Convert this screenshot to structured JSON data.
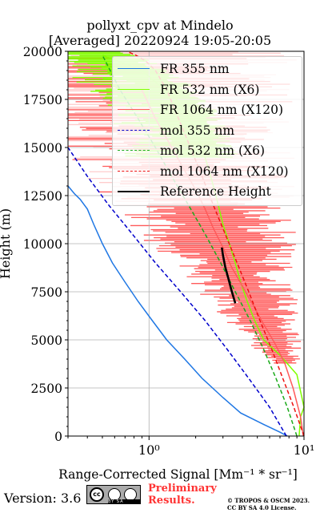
{
  "header": {
    "title_line1": "pollyxt_cpv at Mindelo",
    "title_line2": "[Averaged] 20220924 19:05-20:05"
  },
  "colors": {
    "fr355": "#1f77e4",
    "fr532": "#80ff00",
    "fr1064": "#ff5a5a",
    "mol355": "#0000cc",
    "mol532": "#1aaa1a",
    "mol1064": "#ee1111",
    "reference": "#000000",
    "grid": "#b0b0b0",
    "prelim": "#ff3333"
  },
  "chart_data": {
    "type": "line",
    "ylabel": "Height (m)",
    "xlabel": "Range-Corrected Signal [Mm⁻¹ * sr⁻¹]",
    "xscale": "log",
    "xlim": [
      0.3,
      10
    ],
    "ylim": [
      0,
      20000
    ],
    "y_ticks": [
      0,
      2500,
      5000,
      7500,
      10000,
      12500,
      15000,
      17500,
      20000
    ],
    "y_tick_labels": [
      "0",
      "2500",
      "5000",
      "7500",
      "10000",
      "12500",
      "15000",
      "17500",
      "20000"
    ],
    "x_ticks": [
      1,
      10
    ],
    "x_tick_labels": [
      "10⁰",
      "10¹"
    ],
    "grid": true,
    "legend_position": "top-right",
    "series": [
      {
        "name": "FR 355 nm",
        "style": "solid",
        "x": [
          7.8,
          7.0,
          5.5,
          3.9,
          3.0,
          2.2,
          1.7,
          1.3,
          1.05,
          0.85,
          0.7,
          0.58,
          0.5,
          0.44,
          0.4,
          0.36,
          0.33,
          0.3
        ],
        "y": [
          0,
          200,
          600,
          1200,
          2000,
          3000,
          4000,
          5000,
          6000,
          7000,
          8000,
          9000,
          10000,
          11000,
          11800,
          12300,
          12600,
          13000
        ]
      },
      {
        "name": "FR 532 nm (X6)",
        "style": "solid",
        "x": [
          9.3,
          9.5,
          10.0,
          9.0,
          7.0,
          5.5,
          4.8,
          4.3,
          3.9,
          3.6,
          3.3,
          3.0,
          2.8,
          2.6,
          2.4,
          2.2,
          2.0,
          1.5,
          0.9,
          0.5
        ],
        "y": [
          0,
          1000,
          1500,
          3200,
          4200,
          5000,
          6000,
          7000,
          8000,
          9000,
          10000,
          11000,
          12000,
          13000,
          14000,
          15000,
          16000,
          17500,
          19000,
          19800
        ]
      },
      {
        "name": "FR 1064 nm (X120)",
        "style": "solid",
        "x": [
          9.9,
          9.5,
          8.5,
          7.5,
          6.5,
          5.5,
          4.7,
          4.0,
          3.4,
          3.0,
          2.6,
          2.3,
          2.0,
          1.7,
          1.4,
          1.1,
          0.9
        ],
        "y": [
          0,
          1000,
          2500,
          3800,
          4800,
          5800,
          6800,
          7800,
          8800,
          9800,
          10800,
          11800,
          12800,
          13800,
          15000,
          16500,
          18000
        ]
      },
      {
        "name": "mol 355 nm",
        "style": "dashed",
        "x": [
          7.7,
          6.0,
          4.4,
          3.2,
          2.3,
          1.6,
          1.1,
          0.78,
          0.55,
          0.4,
          0.3
        ],
        "y": [
          0,
          1500,
          3000,
          4500,
          6000,
          7500,
          9000,
          10500,
          12000,
          13500,
          15000
        ]
      },
      {
        "name": "mol 532 nm (X6)",
        "style": "dashed",
        "x": [
          9.0,
          7.8,
          6.6,
          5.5,
          4.5,
          3.6,
          2.9,
          2.3,
          1.8,
          1.4,
          1.1,
          0.85,
          0.65,
          0.5
        ],
        "y": [
          0,
          1500,
          3000,
          4500,
          6000,
          7500,
          9000,
          10500,
          12000,
          13500,
          15000,
          16500,
          18000,
          19800
        ]
      },
      {
        "name": "mol 1064 nm (X120)",
        "style": "dashed",
        "x": [
          10.0,
          8.6,
          7.3,
          6.2,
          5.2,
          4.4,
          3.7,
          3.1,
          2.6,
          2.2,
          1.85,
          1.55,
          1.3,
          1.1,
          0.95,
          0.82,
          0.72
        ],
        "y": [
          0,
          1500,
          3000,
          4500,
          6000,
          7500,
          9000,
          10500,
          12000,
          13500,
          15000,
          16500,
          18000,
          19000,
          19500,
          19800,
          20000
        ]
      },
      {
        "name": "Reference Height",
        "style": "solid",
        "x": [
          3.6,
          3.4,
          3.25,
          3.1,
          3.0,
          2.95
        ],
        "y": [
          6900,
          7600,
          8200,
          8800,
          9400,
          9800
        ]
      }
    ]
  },
  "footer": {
    "version": "Version: 3.6",
    "cc_text": "cc",
    "license_strip": "BY  SA",
    "prelim_line1": "Preliminary",
    "prelim_line2": "Results.",
    "copyright_line1": "© TROPOS & OSCM 2023.",
    "copyright_line2": "CC BY SA 4.0 License."
  }
}
